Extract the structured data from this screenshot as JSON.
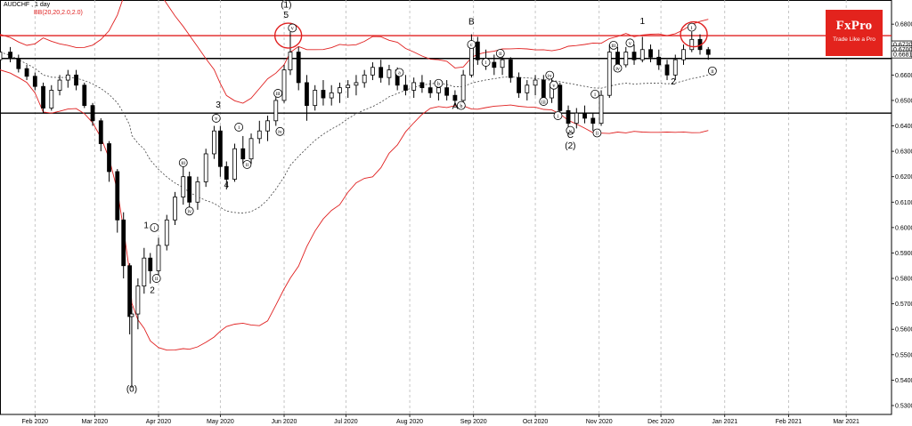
{
  "header": {
    "symbol_title": "AUDCHF , 1 day",
    "indicator_label": "BB(20,20,2.0,2.0)"
  },
  "logo": {
    "name": "FxPro",
    "tagline": "Trade Like a Pro",
    "color": "#e3231d"
  },
  "colors": {
    "band": "#e02020",
    "ma": "#404040",
    "candle": "#000000",
    "bull": "#1a8a1a",
    "bear": "#c00000",
    "hline_red": "#e02020",
    "hline_black": "#000000",
    "grid": "#b8b8b8",
    "price_tag": "#000000"
  },
  "chart_data": {
    "type": "candlestick",
    "timeframe": "1 day",
    "ylim": [
      0.5265,
      0.6895
    ],
    "y_ticks": [
      "0.6800",
      "0.6700",
      "0.6600",
      "0.6500",
      "0.6400",
      "0.6300",
      "0.6200",
      "0.6100",
      "0.6000",
      "0.5900",
      "0.5800",
      "0.5700",
      "0.5600",
      "0.5500",
      "0.5400",
      "0.5300"
    ],
    "x_ticks": [
      "Feb 2020",
      "Mar 2020",
      "Apr 2020",
      "May 2020",
      "Jun 2020",
      "Jul 2020",
      "Aug 2020",
      "Sep 2020",
      "Oct 2020",
      "Nov 2020",
      "Dec 2020",
      "Jan 2021",
      "Feb 2021",
      "Mar 2021"
    ],
    "price_tags": [
      {
        "label": "0.6720",
        "y": 0.672
      },
      {
        "label": "0.6700",
        "y": 0.67
      },
      {
        "label": "0.6681",
        "y": 0.6681
      }
    ],
    "horizontal_levels": [
      {
        "y": 0.6755,
        "color": "red"
      },
      {
        "y": 0.6665,
        "color": "black"
      },
      {
        "y": 0.645,
        "color": "black"
      }
    ],
    "circles": [
      {
        "date": "2020-06-03",
        "y": 0.6755
      },
      {
        "date": "2020-12-17",
        "y": 0.676
      }
    ],
    "wave_labels": [
      {
        "text": "(0)",
        "date": "2020-03-19",
        "y": 0.5355
      },
      {
        "text": "1",
        "date": "2020-03-26",
        "y": 0.5998
      },
      {
        "text": "2",
        "date": "2020-03-29",
        "y": 0.5742
      },
      {
        "text": "3",
        "date": "2020-04-30",
        "y": 0.6472
      },
      {
        "text": "4",
        "date": "2020-05-04",
        "y": 0.6157
      },
      {
        "text": "5",
        "date": "2020-06-02",
        "y": 0.6825
      },
      {
        "text": "(1)",
        "date": "2020-06-02",
        "y": 0.6865
      },
      {
        "text": "B",
        "date": "2020-08-31",
        "y": 0.6798
      },
      {
        "text": "A",
        "date": "2020-08-23",
        "y": 0.6466
      },
      {
        "text": "C",
        "date": "2020-10-18",
        "y": 0.6352
      },
      {
        "text": "(2)",
        "date": "2020-10-18",
        "y": 0.631
      },
      {
        "text": "1",
        "date": "2020-11-22",
        "y": 0.68
      },
      {
        "text": "2",
        "date": "2020-12-07",
        "y": 0.6563
      }
    ],
    "roman_labels": [
      {
        "text": "i",
        "date": "2020-03-30",
        "y": 0.6
      },
      {
        "text": "ii",
        "date": "2020-03-31",
        "y": 0.58
      },
      {
        "text": "iii",
        "date": "2020-04-13",
        "y": 0.6255
      },
      {
        "text": "iv",
        "date": "2020-04-16",
        "y": 0.6065
      },
      {
        "text": "v",
        "date": "2020-04-29",
        "y": 0.643
      },
      {
        "text": "i",
        "date": "2020-05-10",
        "y": 0.6395
      },
      {
        "text": "ii",
        "date": "2020-05-14",
        "y": 0.6248
      },
      {
        "text": "iii",
        "date": "2020-05-29",
        "y": 0.6528
      },
      {
        "text": "iv",
        "date": "2020-05-30",
        "y": 0.6378
      },
      {
        "text": "v",
        "date": "2020-06-05",
        "y": 0.6785
      },
      {
        "text": "a",
        "date": "2020-07-27",
        "y": 0.661
      },
      {
        "text": "b",
        "date": "2020-08-15",
        "y": 0.6567
      },
      {
        "text": "c",
        "date": "2020-08-31",
        "y": 0.672
      },
      {
        "text": "b",
        "date": "2020-08-26",
        "y": 0.648
      },
      {
        "text": "i",
        "date": "2020-09-07",
        "y": 0.665
      },
      {
        "text": "ii",
        "date": "2020-09-14",
        "y": 0.6685
      },
      {
        "text": "iii",
        "date": "2020-10-05",
        "y": 0.6496
      },
      {
        "text": "iv",
        "date": "2020-10-08",
        "y": 0.6599
      },
      {
        "text": "v",
        "date": "2020-10-10",
        "y": 0.656
      },
      {
        "text": "i",
        "date": "2020-10-12",
        "y": 0.644
      },
      {
        "text": "v",
        "date": "2020-10-18",
        "y": 0.6382
      },
      {
        "text": "i",
        "date": "2020-10-30",
        "y": 0.6525
      },
      {
        "text": "ii",
        "date": "2020-10-31",
        "y": 0.6372
      },
      {
        "text": "iii",
        "date": "2020-11-08",
        "y": 0.6717
      },
      {
        "text": "iv",
        "date": "2020-11-10",
        "y": 0.6627
      },
      {
        "text": "v",
        "date": "2020-11-16",
        "y": 0.6726
      },
      {
        "text": "i",
        "date": "2020-12-16",
        "y": 0.6788
      },
      {
        "text": "ii",
        "date": "2020-12-26",
        "y": 0.6616
      }
    ],
    "ohlc": [
      [
        "2020-01-15",
        0.666,
        0.67,
        0.664,
        0.669
      ],
      [
        "2020-01-20",
        0.669,
        0.671,
        0.665,
        0.6665
      ],
      [
        "2020-01-24",
        0.6665,
        0.668,
        0.661,
        0.6625
      ],
      [
        "2020-01-28",
        0.6625,
        0.664,
        0.658,
        0.6595
      ],
      [
        "2020-02-01",
        0.6595,
        0.661,
        0.654,
        0.6555
      ],
      [
        "2020-02-05",
        0.6555,
        0.657,
        0.645,
        0.647
      ],
      [
        "2020-02-09",
        0.647,
        0.656,
        0.646,
        0.654
      ],
      [
        "2020-02-13",
        0.654,
        0.66,
        0.652,
        0.658
      ],
      [
        "2020-02-17",
        0.658,
        0.662,
        0.655,
        0.66
      ],
      [
        "2020-02-21",
        0.66,
        0.662,
        0.654,
        0.656
      ],
      [
        "2020-02-25",
        0.656,
        0.657,
        0.647,
        0.648
      ],
      [
        "2020-02-29",
        0.648,
        0.649,
        0.64,
        0.642
      ],
      [
        "2020-03-04",
        0.642,
        0.643,
        0.63,
        0.633
      ],
      [
        "2020-03-08",
        0.633,
        0.634,
        0.618,
        0.622
      ],
      [
        "2020-03-12",
        0.622,
        0.623,
        0.598,
        0.603
      ],
      [
        "2020-03-15",
        0.603,
        0.606,
        0.58,
        0.585
      ],
      [
        "2020-03-18",
        0.585,
        0.586,
        0.558,
        0.565
      ],
      [
        "2020-03-19",
        0.565,
        0.569,
        0.537,
        0.566
      ],
      [
        "2020-03-22",
        0.566,
        0.58,
        0.56,
        0.577
      ],
      [
        "2020-03-25",
        0.577,
        0.592,
        0.574,
        0.588
      ],
      [
        "2020-03-28",
        0.588,
        0.59,
        0.578,
        0.583
      ],
      [
        "2020-04-01",
        0.583,
        0.596,
        0.58,
        0.593
      ],
      [
        "2020-04-05",
        0.593,
        0.605,
        0.591,
        0.603
      ],
      [
        "2020-04-09",
        0.603,
        0.614,
        0.601,
        0.612
      ],
      [
        "2020-04-13",
        0.612,
        0.624,
        0.609,
        0.62
      ],
      [
        "2020-04-16",
        0.62,
        0.622,
        0.608,
        0.61
      ],
      [
        "2020-04-20",
        0.61,
        0.62,
        0.607,
        0.618
      ],
      [
        "2020-04-24",
        0.618,
        0.631,
        0.616,
        0.629
      ],
      [
        "2020-04-28",
        0.629,
        0.64,
        0.627,
        0.638
      ],
      [
        "2020-05-01",
        0.638,
        0.64,
        0.62,
        0.624
      ],
      [
        "2020-05-04",
        0.624,
        0.626,
        0.615,
        0.619
      ],
      [
        "2020-05-08",
        0.619,
        0.633,
        0.618,
        0.631
      ],
      [
        "2020-05-12",
        0.631,
        0.636,
        0.625,
        0.627
      ],
      [
        "2020-05-16",
        0.627,
        0.637,
        0.625,
        0.635
      ],
      [
        "2020-05-20",
        0.635,
        0.642,
        0.633,
        0.638
      ],
      [
        "2020-05-24",
        0.638,
        0.644,
        0.634,
        0.642
      ],
      [
        "2020-05-28",
        0.642,
        0.652,
        0.64,
        0.65
      ],
      [
        "2020-06-01",
        0.65,
        0.664,
        0.649,
        0.662
      ],
      [
        "2020-06-04",
        0.662,
        0.677,
        0.66,
        0.669
      ],
      [
        "2020-06-08",
        0.669,
        0.671,
        0.654,
        0.657
      ],
      [
        "2020-06-12",
        0.657,
        0.66,
        0.642,
        0.648
      ],
      [
        "2020-06-16",
        0.648,
        0.656,
        0.646,
        0.654
      ],
      [
        "2020-06-20",
        0.654,
        0.658,
        0.648,
        0.651
      ],
      [
        "2020-06-24",
        0.651,
        0.656,
        0.648,
        0.653
      ],
      [
        "2020-06-28",
        0.653,
        0.657,
        0.649,
        0.655
      ],
      [
        "2020-07-02",
        0.655,
        0.658,
        0.651,
        0.656
      ],
      [
        "2020-07-06",
        0.656,
        0.66,
        0.652,
        0.657
      ],
      [
        "2020-07-10",
        0.657,
        0.662,
        0.655,
        0.66
      ],
      [
        "2020-07-14",
        0.66,
        0.665,
        0.658,
        0.663
      ],
      [
        "2020-07-18",
        0.663,
        0.666,
        0.657,
        0.659
      ],
      [
        "2020-07-22",
        0.659,
        0.664,
        0.656,
        0.662
      ],
      [
        "2020-07-26",
        0.662,
        0.663,
        0.654,
        0.656
      ],
      [
        "2020-07-30",
        0.656,
        0.66,
        0.652,
        0.654
      ],
      [
        "2020-08-03",
        0.654,
        0.659,
        0.651,
        0.657
      ],
      [
        "2020-08-07",
        0.657,
        0.66,
        0.653,
        0.655
      ],
      [
        "2020-08-11",
        0.655,
        0.658,
        0.651,
        0.653
      ],
      [
        "2020-08-15",
        0.653,
        0.657,
        0.65,
        0.655
      ],
      [
        "2020-08-19",
        0.655,
        0.658,
        0.65,
        0.652
      ],
      [
        "2020-08-23",
        0.652,
        0.654,
        0.648,
        0.65
      ],
      [
        "2020-08-27",
        0.65,
        0.662,
        0.649,
        0.66
      ],
      [
        "2020-08-31",
        0.66,
        0.676,
        0.659,
        0.673
      ],
      [
        "2020-09-03",
        0.673,
        0.675,
        0.664,
        0.666
      ],
      [
        "2020-09-07",
        0.666,
        0.67,
        0.662,
        0.665
      ],
      [
        "2020-09-11",
        0.665,
        0.668,
        0.66,
        0.663
      ],
      [
        "2020-09-15",
        0.663,
        0.668,
        0.66,
        0.666
      ],
      [
        "2020-09-19",
        0.666,
        0.667,
        0.657,
        0.659
      ],
      [
        "2020-09-23",
        0.659,
        0.661,
        0.651,
        0.653
      ],
      [
        "2020-09-27",
        0.653,
        0.658,
        0.65,
        0.656
      ],
      [
        "2020-10-01",
        0.656,
        0.66,
        0.652,
        0.658
      ],
      [
        "2020-10-05",
        0.658,
        0.66,
        0.649,
        0.651
      ],
      [
        "2020-10-09",
        0.651,
        0.659,
        0.649,
        0.656
      ],
      [
        "2020-10-13",
        0.656,
        0.657,
        0.644,
        0.646
      ],
      [
        "2020-10-17",
        0.646,
        0.648,
        0.638,
        0.641
      ],
      [
        "2020-10-21",
        0.641,
        0.647,
        0.639,
        0.645
      ],
      [
        "2020-10-25",
        0.645,
        0.648,
        0.641,
        0.643
      ],
      [
        "2020-10-29",
        0.643,
        0.645,
        0.638,
        0.641
      ],
      [
        "2020-11-02",
        0.641,
        0.654,
        0.64,
        0.652
      ],
      [
        "2020-11-06",
        0.652,
        0.672,
        0.651,
        0.669
      ],
      [
        "2020-11-10",
        0.669,
        0.671,
        0.661,
        0.664
      ],
      [
        "2020-11-14",
        0.664,
        0.671,
        0.663,
        0.669
      ],
      [
        "2020-11-18",
        0.669,
        0.672,
        0.664,
        0.666
      ],
      [
        "2020-11-22",
        0.666,
        0.675,
        0.665,
        0.67
      ],
      [
        "2020-11-26",
        0.67,
        0.672,
        0.665,
        0.667
      ],
      [
        "2020-11-30",
        0.667,
        0.67,
        0.662,
        0.664
      ],
      [
        "2020-12-04",
        0.664,
        0.666,
        0.658,
        0.66
      ],
      [
        "2020-12-08",
        0.66,
        0.668,
        0.658,
        0.666
      ],
      [
        "2020-12-12",
        0.666,
        0.672,
        0.664,
        0.67
      ],
      [
        "2020-12-16",
        0.67,
        0.677,
        0.669,
        0.674
      ],
      [
        "2020-12-20",
        0.674,
        0.676,
        0.668,
        0.67
      ],
      [
        "2020-12-24",
        0.67,
        0.671,
        0.666,
        0.6681
      ]
    ]
  }
}
